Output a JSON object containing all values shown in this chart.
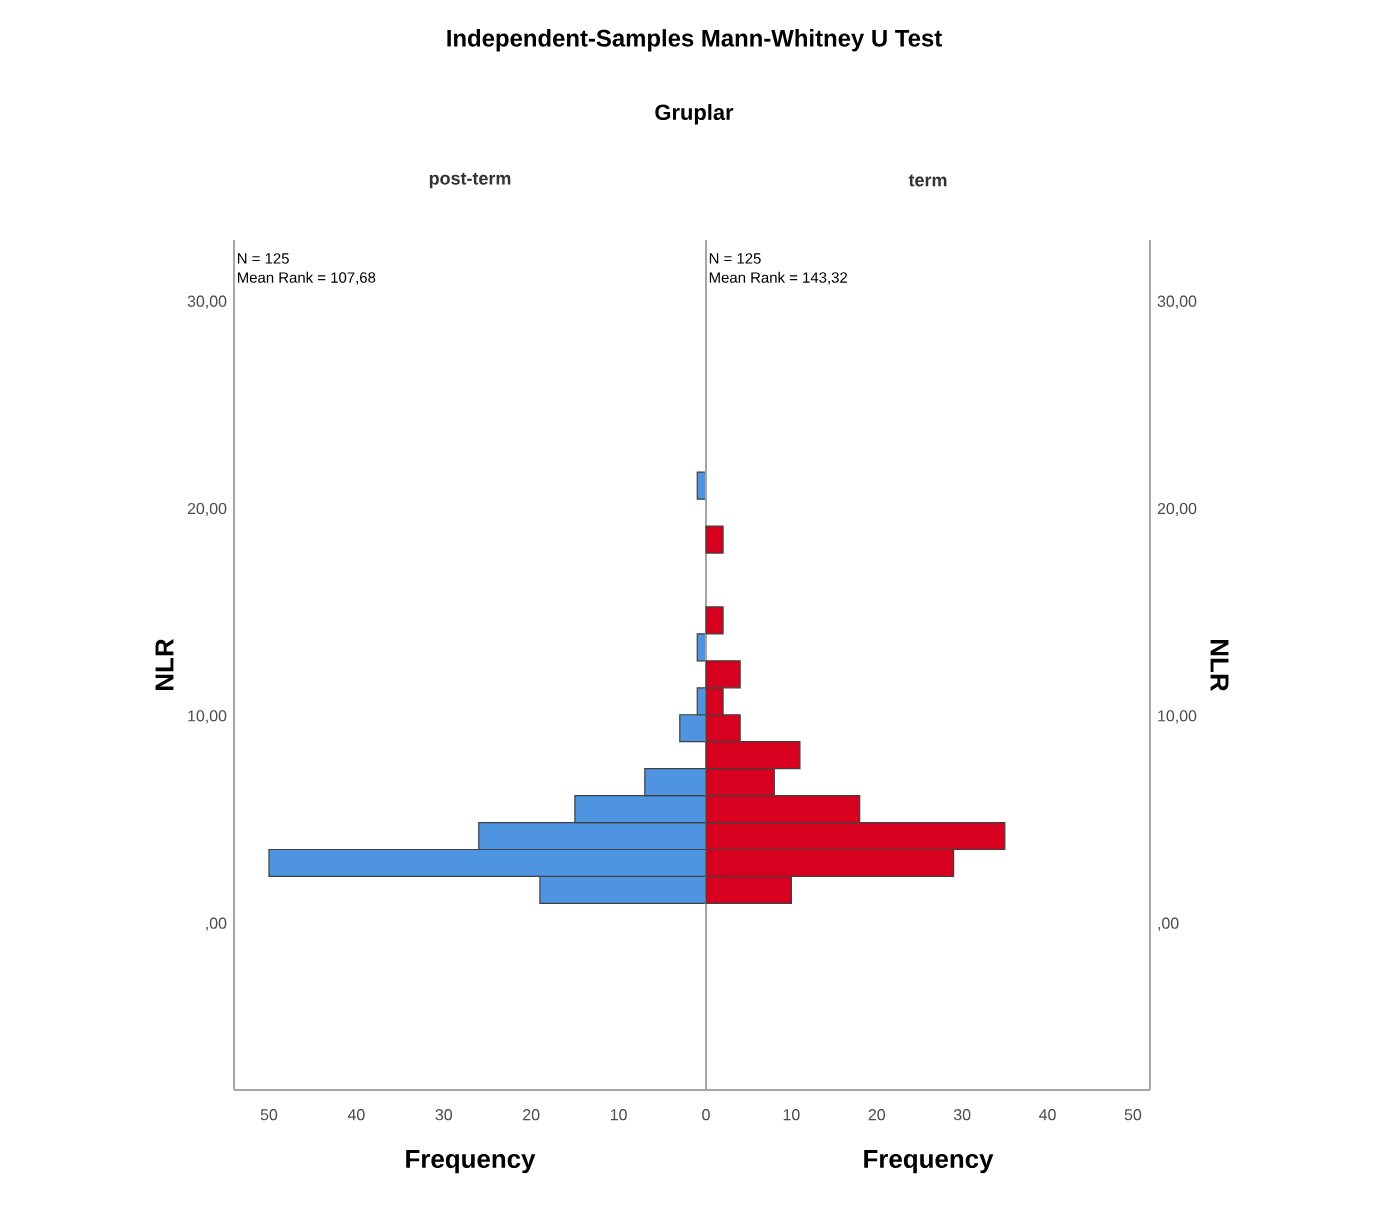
{
  "chart_data": [
    {
      "type": "histogram",
      "title": "Independent-Samples Mann-Whitney U Test",
      "subtitle": "Gruplar",
      "orientation": "horizontal",
      "bins": [
        1.0,
        2.3,
        3.6,
        4.9,
        6.2,
        7.5,
        8.8,
        10.1,
        11.4,
        12.7,
        14.0,
        15.3,
        16.6,
        17.9,
        19.2,
        20.5,
        21.8
      ],
      "series": [
        {
          "name": "post-term",
          "color": "#4f94e0",
          "values": [
            19,
            50,
            26,
            15,
            7,
            0,
            3,
            1,
            0,
            1,
            0,
            0,
            0,
            0,
            0,
            1
          ]
        }
      ],
      "xlim": [
        54,
        0
      ],
      "xticks": [
        50,
        40,
        30,
        20,
        10,
        0
      ],
      "ylim": [
        -8,
        33
      ],
      "yticks": [
        {
          "value": 0,
          "label": ",00"
        },
        {
          "value": 10,
          "label": "10,00"
        },
        {
          "value": 20,
          "label": "20,00"
        },
        {
          "value": 30,
          "label": "30,00"
        }
      ],
      "xlabel": "Frequency",
      "ylabel": "NLR",
      "annotations": [
        "N = 125",
        "Mean Rank = 107,68"
      ]
    },
    {
      "type": "histogram",
      "orientation": "horizontal",
      "bins": [
        1.0,
        2.3,
        3.6,
        4.9,
        6.2,
        7.5,
        8.8,
        10.1,
        11.4,
        12.7,
        14.0,
        15.3,
        16.6,
        17.9,
        19.2,
        20.5,
        21.8
      ],
      "series": [
        {
          "name": "term",
          "color": "#d7001e",
          "values": [
            10,
            29,
            35,
            18,
            8,
            11,
            4,
            2,
            4,
            0,
            2,
            0,
            0,
            2,
            0,
            0
          ]
        }
      ],
      "xlim": [
        0,
        52
      ],
      "xticks": [
        10,
        20,
        30,
        40,
        50
      ],
      "ylim": [
        -8,
        33
      ],
      "yticks": [
        {
          "value": 0,
          "label": ",00"
        },
        {
          "value": 10,
          "label": "10,00"
        },
        {
          "value": 20,
          "label": "20,00"
        },
        {
          "value": 30,
          "label": "30,00"
        }
      ],
      "xlabel": "Frequency",
      "ylabel": "NLR",
      "annotations": [
        "N = 125",
        "Mean Rank = 143,32"
      ]
    }
  ]
}
